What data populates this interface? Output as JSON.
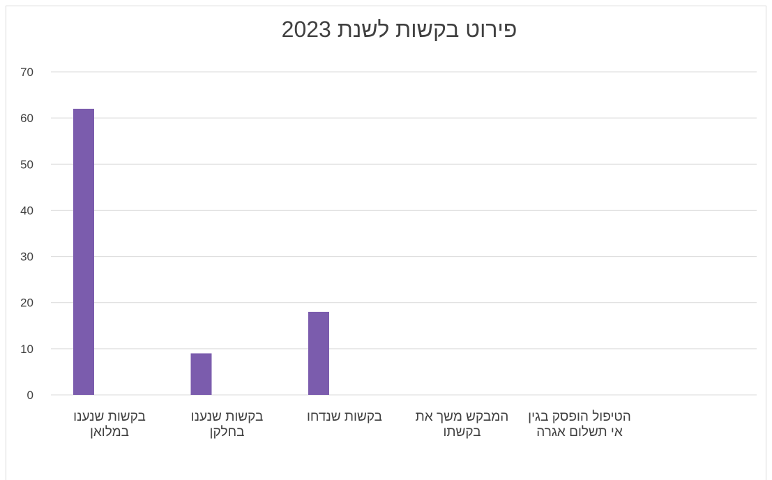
{
  "chart_data": {
    "type": "bar",
    "title": "פירוט בקשות לשנת 2023",
    "categories": [
      "בקשות שנענו במלואן",
      "בקשות שנענו בחלקן",
      "בקשות שנדחו",
      "המבקש משך את בקשתו",
      "הטיפול הופסק בגין אי תשלום אגרה"
    ],
    "values": [
      62,
      9,
      18,
      0,
      0
    ],
    "ylim": [
      0,
      70
    ],
    "yticks": [
      "0",
      "10",
      "20",
      "30",
      "40",
      "50",
      "60",
      "70"
    ],
    "grid": true,
    "bar_color": "#7b5cad",
    "grid_color": "#d9d9d9"
  }
}
